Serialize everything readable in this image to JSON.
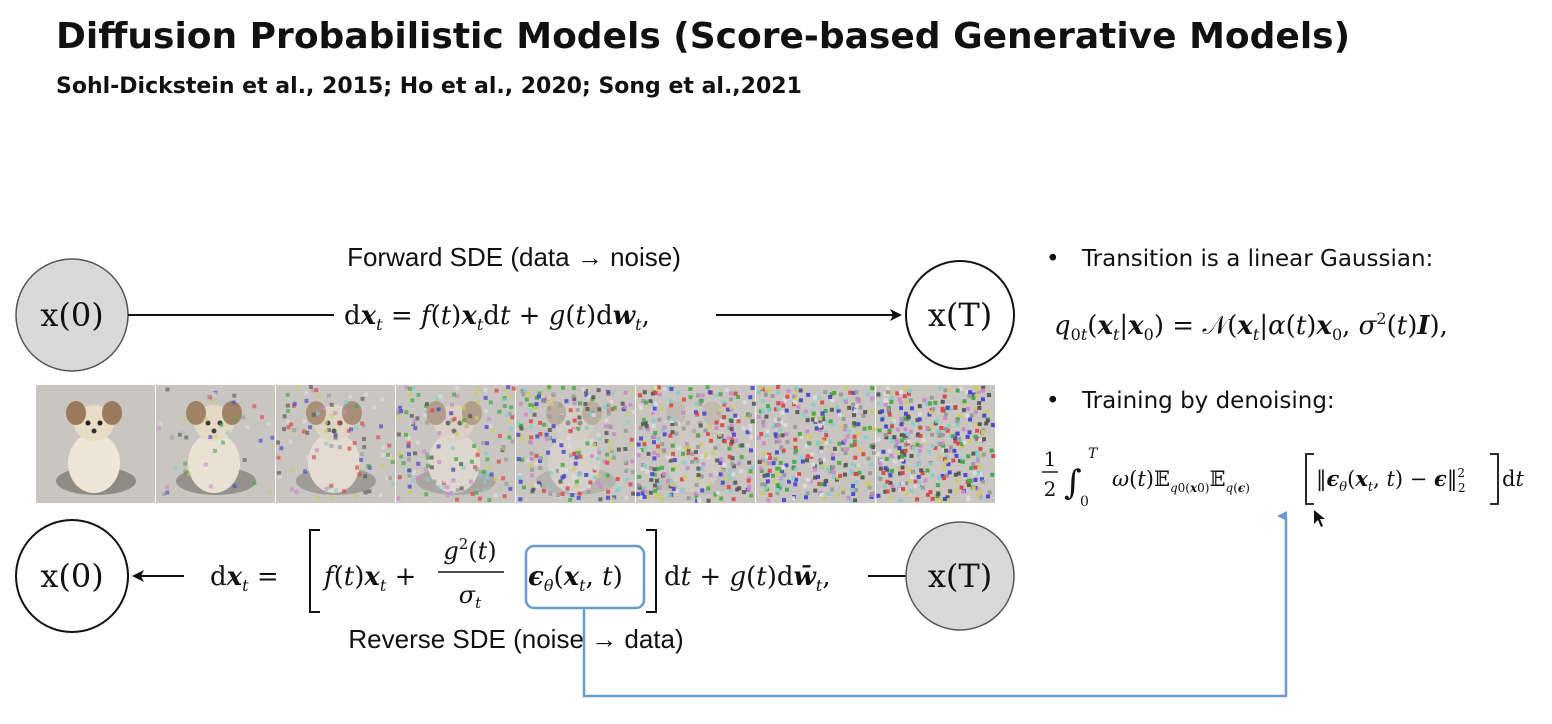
{
  "slide": {
    "title": "Diffusion Probabilistic Models (Score-based Generative Models)",
    "subtitle": "Sohl-Dickstein et al., 2015; Ho et al., 2020; Song et al.,2021"
  },
  "forward": {
    "label": "Forward SDE (data → noise)",
    "start_node": "x(0)",
    "end_node": "x(T)"
  },
  "reverse": {
    "label": "Reverse SDE (noise → data)",
    "start_node": "x(T)",
    "end_node": "x(0)"
  },
  "bullets": [
    {
      "text": "Transition is a linear Gaussian:"
    },
    {
      "text": "Training by denoising:"
    }
  ],
  "noise_levels": [
    0.0,
    0.12,
    0.28,
    0.45,
    0.65,
    0.82,
    0.93,
    1.0
  ],
  "colors": {
    "shaded_node": "#d9d9d9",
    "highlight": "#6a9ac9",
    "line": "#111111"
  }
}
